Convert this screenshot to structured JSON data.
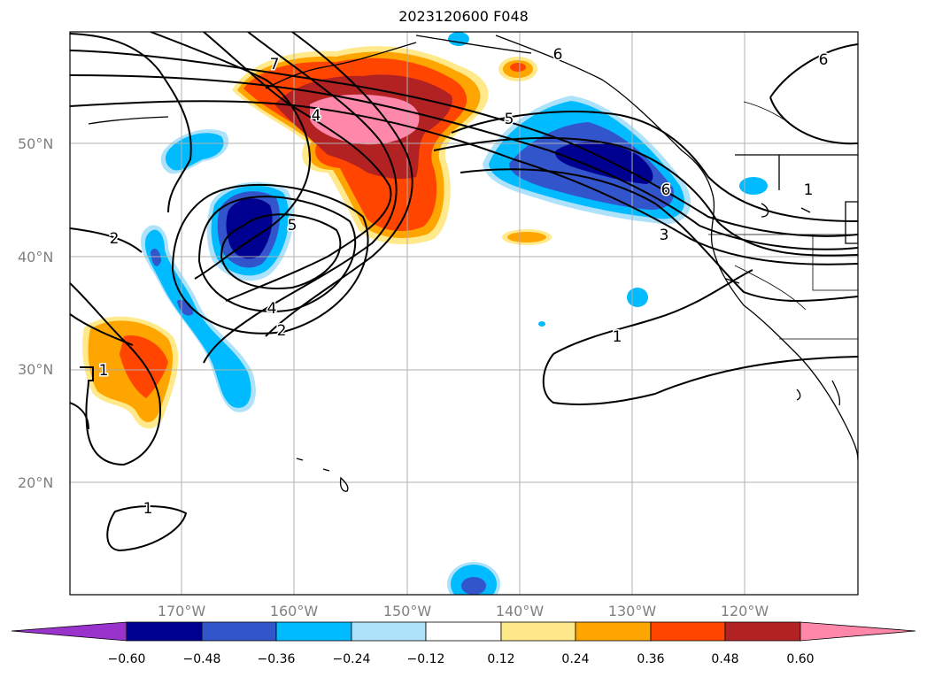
{
  "title": "2023120600 F048",
  "lat_labels": [
    "50°N",
    "40°N",
    "30°N",
    "20°N"
  ],
  "lon_labels": [
    "170°W",
    "160°W",
    "150°W",
    "140°W",
    "130°W",
    "120°W"
  ],
  "colorbar": {
    "ticks": [
      "−0.60",
      "−0.48",
      "−0.36",
      "−0.24",
      "−0.12",
      "0.12",
      "0.24",
      "0.36",
      "0.48",
      "0.60"
    ],
    "colors": [
      "#9933cc",
      "#000090",
      "#3355cc",
      "#00bbff",
      "#aee2fa",
      "#ffffff",
      "#ffe98a",
      "#ffa500",
      "#ff4500",
      "#b22222",
      "#ff88aa"
    ]
  },
  "contour_labels": [
    "7",
    "6",
    "6",
    "6",
    "5",
    "5",
    "4",
    "4",
    "3",
    "2",
    "2",
    "1",
    "1",
    "1",
    "1"
  ]
}
